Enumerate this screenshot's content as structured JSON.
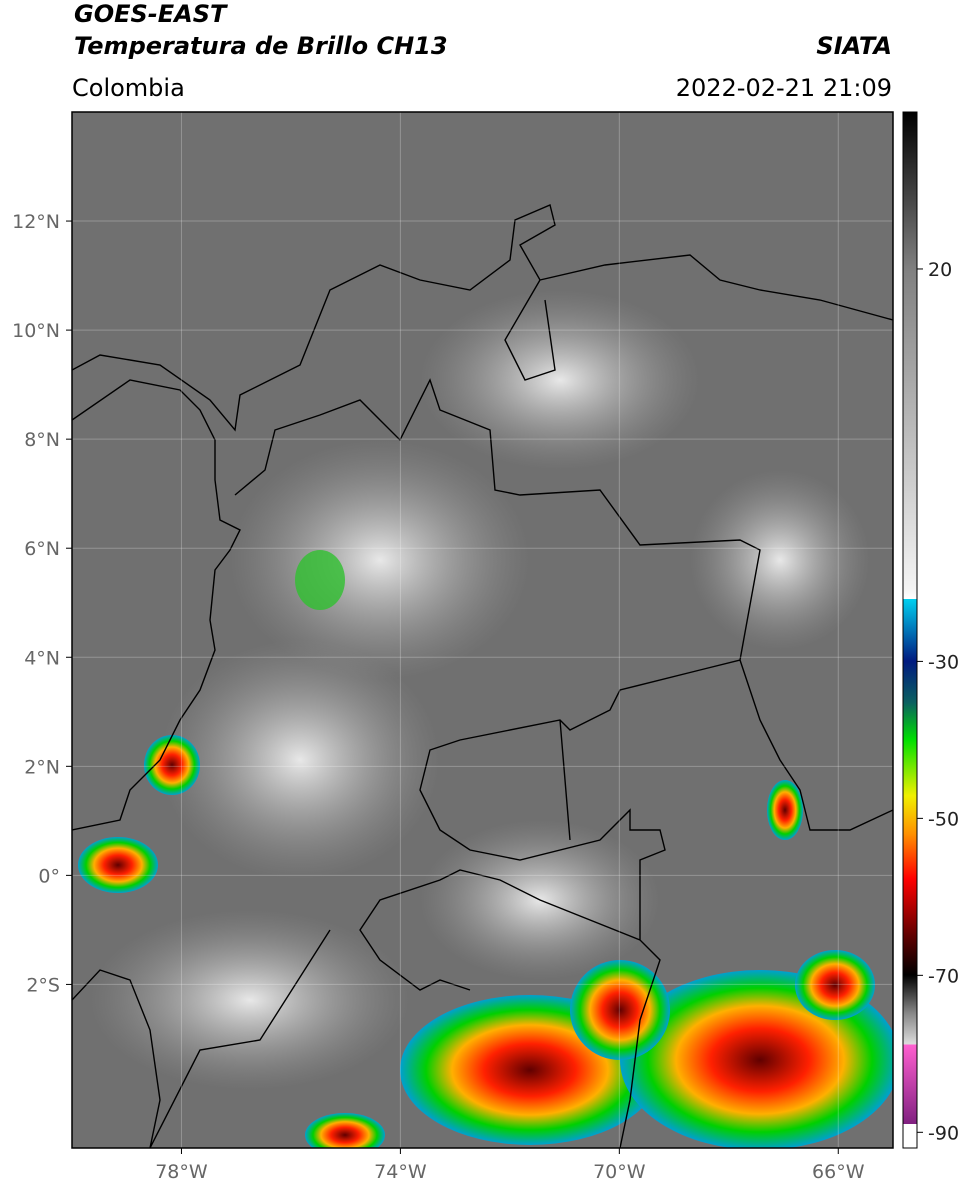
{
  "chart_data": {
    "type": "map",
    "title": "GOES-EAST",
    "subtitle": "Temperatura de Brillo CH13",
    "source": "SIATA",
    "region": "Colombia",
    "timestamp": "2022-02-21 21:09",
    "xlim": [
      -80,
      -65
    ],
    "ylim": [
      -5,
      14
    ],
    "xticks": [
      {
        "value": -78,
        "label": "78°W"
      },
      {
        "value": -74,
        "label": "74°W"
      },
      {
        "value": -70,
        "label": "70°W"
      },
      {
        "value": -66,
        "label": "66°W"
      }
    ],
    "yticks": [
      {
        "value": 12,
        "label": "12°N"
      },
      {
        "value": 10,
        "label": "10°N"
      },
      {
        "value": 8,
        "label": "8°N"
      },
      {
        "value": 6,
        "label": "6°N"
      },
      {
        "value": 4,
        "label": "4°N"
      },
      {
        "value": 2,
        "label": "2°N"
      },
      {
        "value": 0,
        "label": "0°"
      },
      {
        "value": -2,
        "label": "2°S"
      }
    ],
    "grid": true,
    "colorbar": {
      "lim": [
        -92,
        40
      ],
      "ticks": [
        20,
        -30,
        -50,
        -70,
        -90
      ]
    }
  }
}
